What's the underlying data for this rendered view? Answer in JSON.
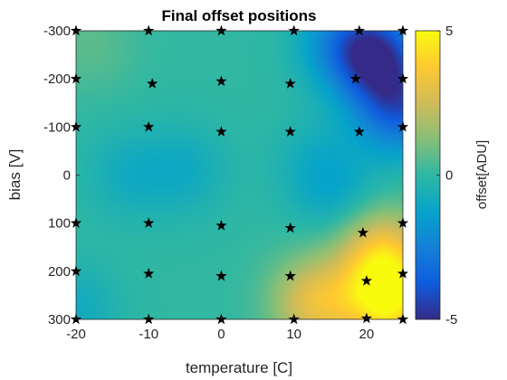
{
  "chart_data": {
    "type": "heatmap",
    "title": "Final offset positions",
    "xlabel": "temperature [C]",
    "ylabel": "bias [V]",
    "xlim": [
      -20,
      25
    ],
    "ylim": [
      -300,
      300
    ],
    "y_reversed": true,
    "xticks": [
      -20,
      -10,
      0,
      10,
      20
    ],
    "xtick_labels": [
      "-20",
      "-10",
      "0",
      "10",
      "20"
    ],
    "yticks": [
      -300,
      -200,
      -100,
      0,
      100,
      200,
      300
    ],
    "ytick_labels": [
      "-300",
      "-200",
      "-100",
      "0",
      "100",
      "200",
      "300"
    ],
    "colormap": "parula",
    "colorbar": {
      "label": "offset[ADU]",
      "range": [
        -5,
        5
      ],
      "ticks": [
        -5,
        0,
        5
      ],
      "tick_labels": [
        "-5",
        "0",
        "5"
      ]
    },
    "sample_points": [
      {
        "x": -20,
        "y": -300
      },
      {
        "x": -10,
        "y": -300
      },
      {
        "x": 0,
        "y": -300
      },
      {
        "x": 10,
        "y": -300
      },
      {
        "x": 19,
        "y": -300
      },
      {
        "x": 25,
        "y": -300
      },
      {
        "x": -20,
        "y": -200
      },
      {
        "x": -9.5,
        "y": -190
      },
      {
        "x": 0,
        "y": -195
      },
      {
        "x": 9.5,
        "y": -190
      },
      {
        "x": 18.5,
        "y": -200
      },
      {
        "x": 25,
        "y": -200
      },
      {
        "x": -20,
        "y": -100
      },
      {
        "x": -10,
        "y": -100
      },
      {
        "x": 0,
        "y": -90
      },
      {
        "x": 9.5,
        "y": -90
      },
      {
        "x": 19,
        "y": -90
      },
      {
        "x": 25,
        "y": -100
      },
      {
        "x": -20,
        "y": 100
      },
      {
        "x": -10,
        "y": 100
      },
      {
        "x": 0,
        "y": 105
      },
      {
        "x": 9.5,
        "y": 110
      },
      {
        "x": 19.5,
        "y": 120
      },
      {
        "x": 25,
        "y": 100
      },
      {
        "x": -20,
        "y": 200
      },
      {
        "x": -10,
        "y": 205
      },
      {
        "x": 0,
        "y": 210
      },
      {
        "x": 9.5,
        "y": 210
      },
      {
        "x": 20,
        "y": 220
      },
      {
        "x": 25,
        "y": 205
      },
      {
        "x": -20,
        "y": 300
      },
      {
        "x": -10,
        "y": 300
      },
      {
        "x": 0,
        "y": 300
      },
      {
        "x": 10,
        "y": 300
      },
      {
        "x": 20,
        "y": 298
      },
      {
        "x": 25,
        "y": 300
      }
    ],
    "field_features": [
      {
        "x": 21,
        "y": -250,
        "value": -4.5
      },
      {
        "x": 24.5,
        "y": -140,
        "value": -3.5
      },
      {
        "x": 16,
        "y": -280,
        "value": -1.5
      },
      {
        "x": -13,
        "y": 0,
        "value": -0.8
      },
      {
        "x": -5,
        "y": -10,
        "value": -0.9
      },
      {
        "x": 13,
        "y": -30,
        "value": -0.7
      },
      {
        "x": 16,
        "y": 40,
        "value": -1.0
      },
      {
        "x": -20,
        "y": 280,
        "value": -0.9
      },
      {
        "x": -18,
        "y": -270,
        "value": 0.6
      },
      {
        "x": 23,
        "y": 260,
        "value": 4.5
      },
      {
        "x": 13,
        "y": 265,
        "value": 3.0
      },
      {
        "x": 22,
        "y": 160,
        "value": 3.0
      }
    ]
  }
}
